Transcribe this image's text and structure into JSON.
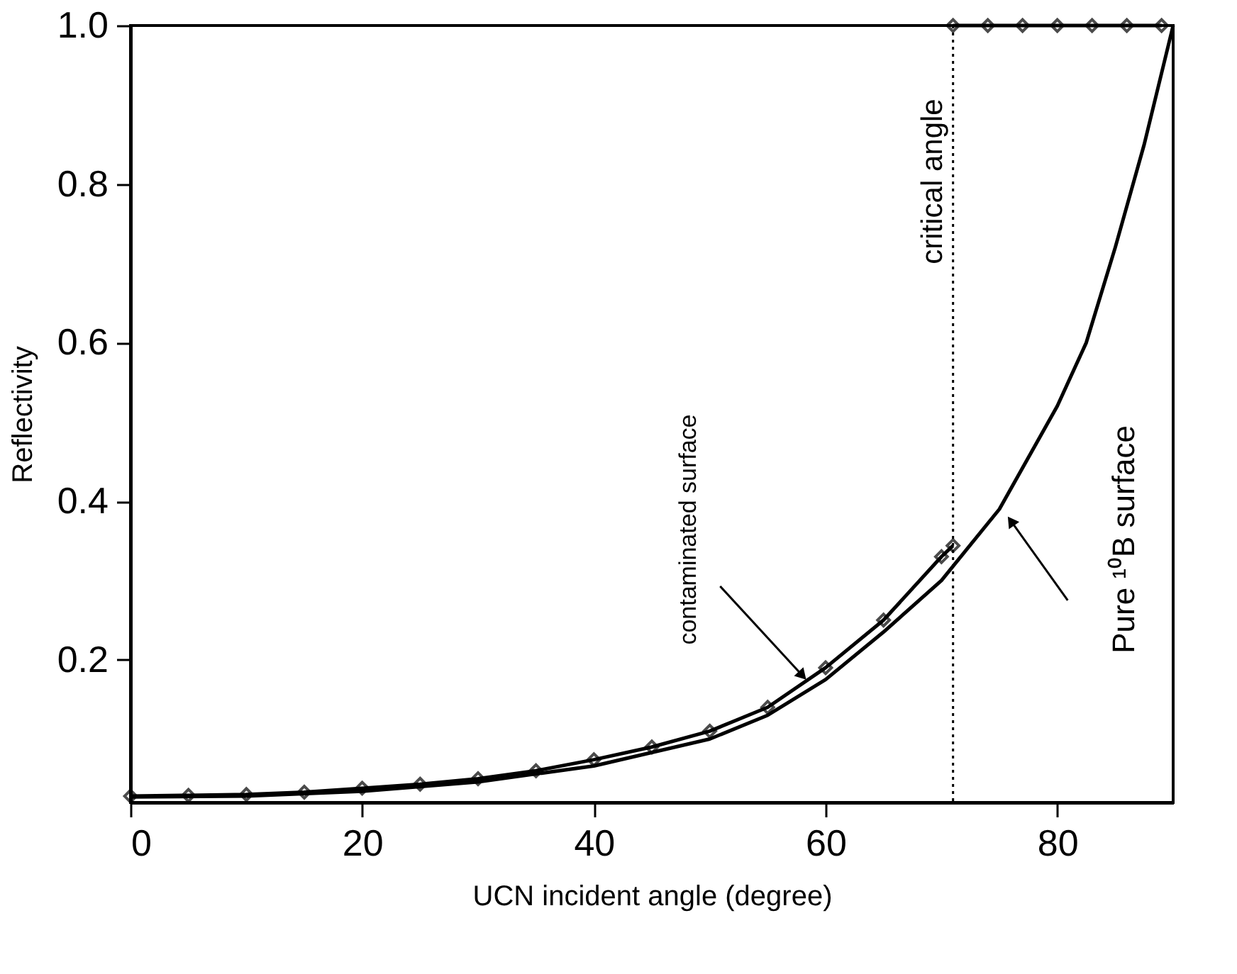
{
  "chart_data": {
    "type": "line",
    "xlabel": "UCN incident angle (degree)",
    "ylabel": "Reflectivity",
    "xlim": [
      0,
      90
    ],
    "xticks": [
      0,
      20,
      40,
      60,
      80
    ],
    "ylim": [
      0.02,
      1.0
    ],
    "yticks": [
      0.2,
      0.4,
      0.6,
      0.8,
      {
        "value": 1.0,
        "label": "1.0"
      }
    ],
    "grid": false,
    "series": [
      {
        "type": "line",
        "marker": "diamond",
        "color": "#000000",
        "x": [
          0,
          5,
          10,
          15,
          20,
          25,
          30,
          35,
          40,
          45,
          50,
          55,
          60,
          65,
          70,
          71
        ],
        "values": [
          0.028,
          0.029,
          0.03,
          0.033,
          0.038,
          0.043,
          0.05,
          0.06,
          0.074,
          0.09,
          0.11,
          0.14,
          0.19,
          0.25,
          0.33,
          0.344
        ]
      },
      {
        "type": "line",
        "marker": "diamond",
        "color": "#000000",
        "x": [
          71,
          74,
          77,
          80,
          83,
          86,
          89
        ],
        "values": [
          1.0,
          1.0,
          1.0,
          1.0,
          1.0,
          1.0,
          1.0
        ]
      },
      {
        "type": "line",
        "marker": "none",
        "color": "#000000",
        "x": [
          0,
          10,
          20,
          30,
          40,
          50,
          55,
          60,
          65,
          70,
          75,
          80,
          82.5,
          85,
          87.5,
          90
        ],
        "values": [
          0.027,
          0.028,
          0.034,
          0.046,
          0.066,
          0.1,
          0.13,
          0.175,
          0.235,
          0.3,
          0.39,
          0.52,
          0.6,
          0.72,
          0.85,
          1.0
        ]
      }
    ],
    "ref_lines": [
      {
        "axis": "x",
        "value": 71,
        "label": "critical angle",
        "line_style": "dotted",
        "color": "#000000"
      }
    ],
    "annotations": [
      {
        "text": "contaminated surface",
        "x": 58,
        "y": 0.18
      },
      {
        "text": "Pure ¹⁰B surface",
        "x": 76,
        "y": 0.375
      }
    ]
  }
}
